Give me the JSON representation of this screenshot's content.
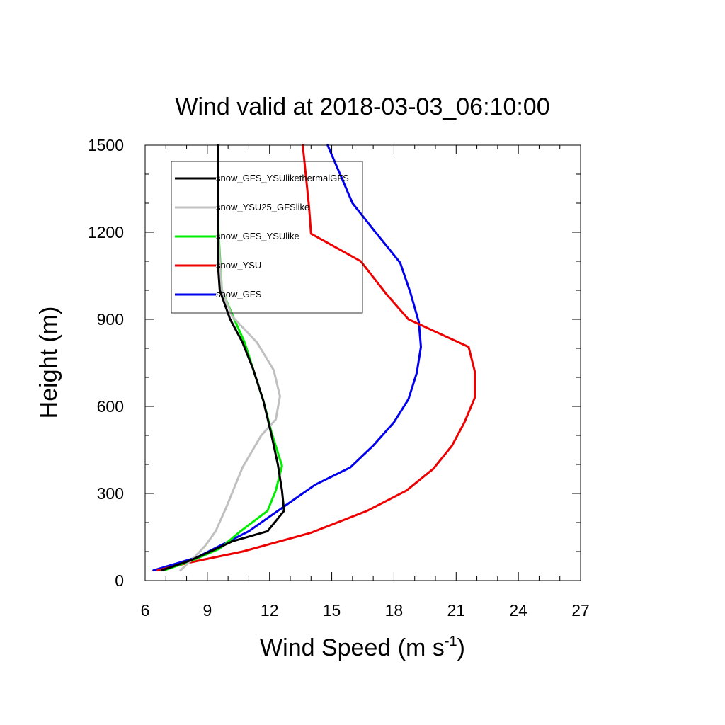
{
  "chart_data": {
    "type": "line",
    "title": "Wind valid at 2018-03-03_06:10:00",
    "xlabel": "Wind Speed (m s",
    "xlabel_sup": "-1",
    "xlabel_end": ")",
    "ylabel": "Height (m)",
    "xlim": [
      6,
      27
    ],
    "ylim": [
      0,
      1500
    ],
    "x_ticks": [
      "6",
      "9",
      "12",
      "15",
      "18",
      "21",
      "24",
      "27"
    ],
    "y_ticks": [
      "0",
      "300",
      "600",
      "900",
      "1200",
      "1500"
    ],
    "grid": false,
    "legend_position": "top-left",
    "series": [
      {
        "name": "snow_GFS_YSUlikethermalGFS",
        "color": "#000000",
        "points": [
          [
            6.8,
            35
          ],
          [
            8.2,
            70
          ],
          [
            9.3,
            105
          ],
          [
            10.2,
            135
          ],
          [
            11.9,
            170
          ],
          [
            12.7,
            240
          ],
          [
            12.6,
            310
          ],
          [
            12.4,
            400
          ],
          [
            12.1,
            500
          ],
          [
            11.7,
            620
          ],
          [
            11.2,
            730
          ],
          [
            10.7,
            820
          ],
          [
            10.1,
            900
          ],
          [
            9.6,
            1000
          ],
          [
            9.5,
            1100
          ],
          [
            9.5,
            1250
          ],
          [
            9.5,
            1500
          ]
        ]
      },
      {
        "name": "snow_YSU25_GFSlike",
        "color": "#c0c0c0",
        "points": [
          [
            7.7,
            35
          ],
          [
            8.3,
            75
          ],
          [
            8.9,
            120
          ],
          [
            9.4,
            170
          ],
          [
            9.9,
            250
          ],
          [
            10.7,
            390
          ],
          [
            11.6,
            500
          ],
          [
            12.3,
            555
          ],
          [
            12.5,
            635
          ],
          [
            12.2,
            725
          ],
          [
            11.4,
            820
          ],
          [
            10.2,
            910
          ],
          [
            9.7,
            1000
          ],
          [
            9.6,
            1100
          ],
          [
            9.5,
            1250
          ],
          [
            9.5,
            1500
          ]
        ]
      },
      {
        "name": "snow_GFS_YSUlike",
        "color": "#00ee00",
        "points": [
          [
            6.9,
            35
          ],
          [
            8.3,
            70
          ],
          [
            9.6,
            110
          ],
          [
            10.6,
            170
          ],
          [
            11.9,
            240
          ],
          [
            12.3,
            310
          ],
          [
            12.6,
            395
          ],
          [
            12.1,
            510
          ],
          [
            11.7,
            620
          ],
          [
            11.2,
            730
          ],
          [
            10.8,
            820
          ],
          [
            10.3,
            900
          ],
          [
            9.7,
            1000
          ],
          [
            9.5,
            1250
          ],
          [
            9.5,
            1500
          ]
        ]
      },
      {
        "name": "snow_YSU",
        "color": "#ee0000",
        "points": [
          [
            6.6,
            35
          ],
          [
            8.0,
            60
          ],
          [
            10.7,
            100
          ],
          [
            14.0,
            165
          ],
          [
            16.7,
            240
          ],
          [
            18.6,
            310
          ],
          [
            19.9,
            385
          ],
          [
            20.8,
            465
          ],
          [
            21.4,
            545
          ],
          [
            21.9,
            630
          ],
          [
            21.9,
            720
          ],
          [
            21.6,
            805
          ],
          [
            18.7,
            900
          ],
          [
            17.6,
            990
          ],
          [
            16.4,
            1100
          ],
          [
            14.0,
            1195
          ],
          [
            13.9,
            1290
          ],
          [
            13.6,
            1500
          ]
        ]
      },
      {
        "name": "snow_GFS",
        "color": "#0000ee",
        "points": [
          [
            6.4,
            35
          ],
          [
            8.5,
            80
          ],
          [
            11.0,
            170
          ],
          [
            12.8,
            260
          ],
          [
            14.2,
            330
          ],
          [
            15.9,
            390
          ],
          [
            17.0,
            465
          ],
          [
            18.0,
            545
          ],
          [
            18.7,
            625
          ],
          [
            19.1,
            715
          ],
          [
            19.3,
            805
          ],
          [
            19.2,
            890
          ],
          [
            18.8,
            990
          ],
          [
            18.3,
            1095
          ],
          [
            17.0,
            1210
          ],
          [
            16.0,
            1300
          ],
          [
            15.4,
            1400
          ],
          [
            14.8,
            1500
          ]
        ]
      }
    ]
  }
}
